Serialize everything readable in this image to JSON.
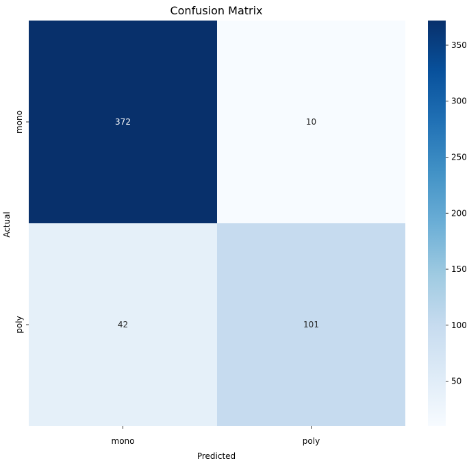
{
  "chart_data": {
    "type": "heatmap",
    "title": "Confusion Matrix",
    "xlabel": "Predicted",
    "ylabel": "Actual",
    "x_categories": [
      "mono",
      "poly"
    ],
    "y_categories": [
      "mono",
      "poly"
    ],
    "values": [
      [
        372,
        10
      ],
      [
        42,
        101
      ]
    ],
    "colormap": "Blues",
    "colorbar": {
      "range": [
        10,
        372
      ],
      "ticks": [
        50,
        100,
        150,
        200,
        250,
        300,
        350
      ]
    },
    "grid": false,
    "legend": "colorbar-right"
  }
}
